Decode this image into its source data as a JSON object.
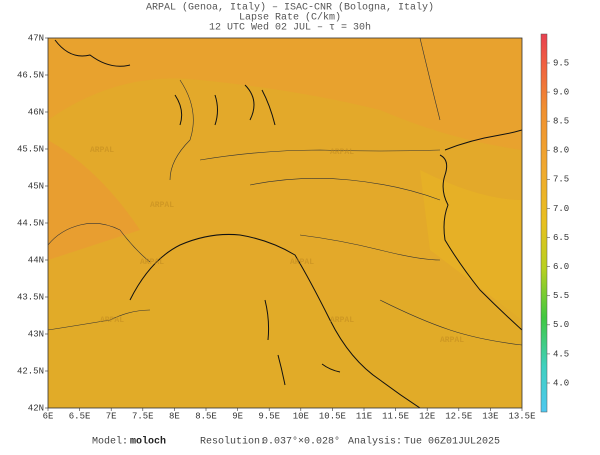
{
  "header": {
    "line1": "ARPAL (Genoa, Italy)  –  ISAC-CNR (Bologna, Italy)",
    "line2": "Lapse Rate (C/km)",
    "line3": "12 UTC Wed 02 JUL  –  τ = 30h"
  },
  "map": {
    "lon_labels": [
      "6E",
      "6.5E",
      "7E",
      "7.5E",
      "8E",
      "8.5E",
      "9E",
      "9.5E",
      "10E",
      "10.5E",
      "11E",
      "11.5E",
      "12E",
      "12.5E",
      "13E",
      "13.5E"
    ],
    "lat_labels": [
      "47N",
      "46.5N",
      "46N",
      "45.5N",
      "45N",
      "44.5N",
      "44N",
      "43.5N",
      "43N",
      "42.5N",
      "42N"
    ],
    "watermark": "ARPAL"
  },
  "colorbar": {
    "labels": [
      "9.5",
      "9.0",
      "8.5",
      "8.0",
      "7.5",
      "7.0",
      "6.5",
      "6.0",
      "5.5",
      "5.0",
      "4.5",
      "4.0"
    ]
  },
  "footer": {
    "model_label": "Model:",
    "model": "moloch",
    "resolution_label": "Resolution:",
    "resolution": "0.037°×0.028°",
    "analysis_label": "Analysis:",
    "analysis": "Tue 06Z01JUL2025"
  }
}
